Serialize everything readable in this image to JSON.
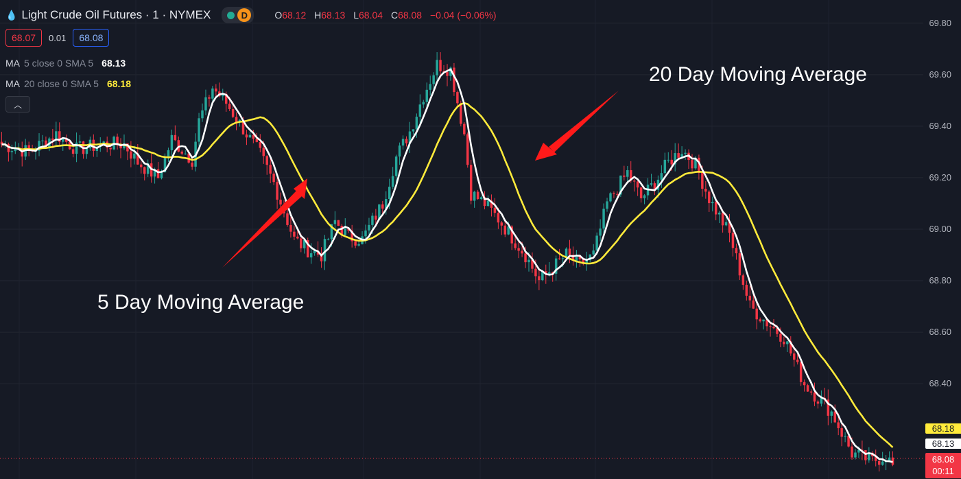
{
  "header": {
    "title": "Light Crude Oil Futures · 1 · NYMEX",
    "drop_icon": "droplet-icon",
    "status_icon": "market-open-dot-icon",
    "delay_badge": "D",
    "ohlc": {
      "o_key": "O",
      "o": "68.12",
      "h_key": "H",
      "h": "68.13",
      "l_key": "L",
      "l": "68.04",
      "c_key": "C",
      "c": "68.08",
      "change": "−0.04 (−0.06%)"
    }
  },
  "quote": {
    "bid": "68.07",
    "spread": "0.01",
    "ask": "68.08"
  },
  "indicators": [
    {
      "name": "MA",
      "params": "5 close 0 SMA 5",
      "value": "68.13",
      "color": "#ffffff"
    },
    {
      "name": "MA",
      "params": "20 close 0 SMA 5",
      "value": "68.18",
      "color": "#ffeb3b"
    }
  ],
  "collapse_icon": "chevron-up-icon",
  "annotations": {
    "ma20": "20 Day Moving Average",
    "ma5": "5 Day Moving Average"
  },
  "price_tags": {
    "ma20": "68.18",
    "ma5": "68.13",
    "last": "68.08",
    "countdown": "00:11"
  },
  "colors": {
    "up": "#26a69a",
    "down": "#f23645",
    "ma5": "#ffffff",
    "ma20": "#ffeb3b",
    "bg": "#161a25",
    "arrow": "#ff1a1a"
  },
  "chart_data": {
    "type": "candlestick",
    "ylim": [
      68.03,
      69.89
    ],
    "yticks": [
      "69.80",
      "69.60",
      "69.40",
      "69.20",
      "69.00",
      "68.80",
      "68.60",
      "68.40"
    ],
    "grid": true,
    "keypoints": [
      [
        0,
        69.33
      ],
      [
        8,
        69.3
      ],
      [
        16,
        69.37
      ],
      [
        22,
        69.31
      ],
      [
        30,
        69.33
      ],
      [
        36,
        69.33
      ],
      [
        40,
        69.26
      ],
      [
        46,
        69.2
      ],
      [
        50,
        69.35
      ],
      [
        56,
        69.27
      ],
      [
        58,
        69.42
      ],
      [
        62,
        69.55
      ],
      [
        66,
        69.49
      ],
      [
        72,
        69.37
      ],
      [
        76,
        69.29
      ],
      [
        80,
        69.18
      ],
      [
        86,
        68.96
      ],
      [
        90,
        68.92
      ],
      [
        94,
        68.9
      ],
      [
        98,
        69.03
      ],
      [
        102,
        68.97
      ],
      [
        106,
        68.96
      ],
      [
        112,
        69.1
      ],
      [
        116,
        69.28
      ],
      [
        120,
        69.38
      ],
      [
        124,
        69.52
      ],
      [
        128,
        69.64
      ],
      [
        132,
        69.62
      ],
      [
        136,
        69.37
      ],
      [
        138,
        69.14
      ],
      [
        142,
        69.1
      ],
      [
        146,
        69.04
      ],
      [
        150,
        68.97
      ],
      [
        154,
        68.9
      ],
      [
        158,
        68.8
      ],
      [
        162,
        68.85
      ],
      [
        166,
        68.9
      ],
      [
        170,
        68.86
      ],
      [
        174,
        68.9
      ],
      [
        178,
        69.1
      ],
      [
        184,
        69.22
      ],
      [
        188,
        69.12
      ],
      [
        192,
        69.18
      ],
      [
        196,
        69.26
      ],
      [
        200,
        69.31
      ],
      [
        204,
        69.25
      ],
      [
        208,
        69.12
      ],
      [
        214,
        68.98
      ],
      [
        220,
        68.7
      ],
      [
        224,
        68.65
      ],
      [
        230,
        68.58
      ],
      [
        236,
        68.4
      ],
      [
        244,
        68.29
      ],
      [
        250,
        68.13
      ],
      [
        256,
        68.1
      ],
      [
        260,
        68.12
      ],
      [
        262,
        68.08
      ]
    ],
    "n_candles": 263,
    "ma5_period": 5,
    "ma20_period": 20
  }
}
